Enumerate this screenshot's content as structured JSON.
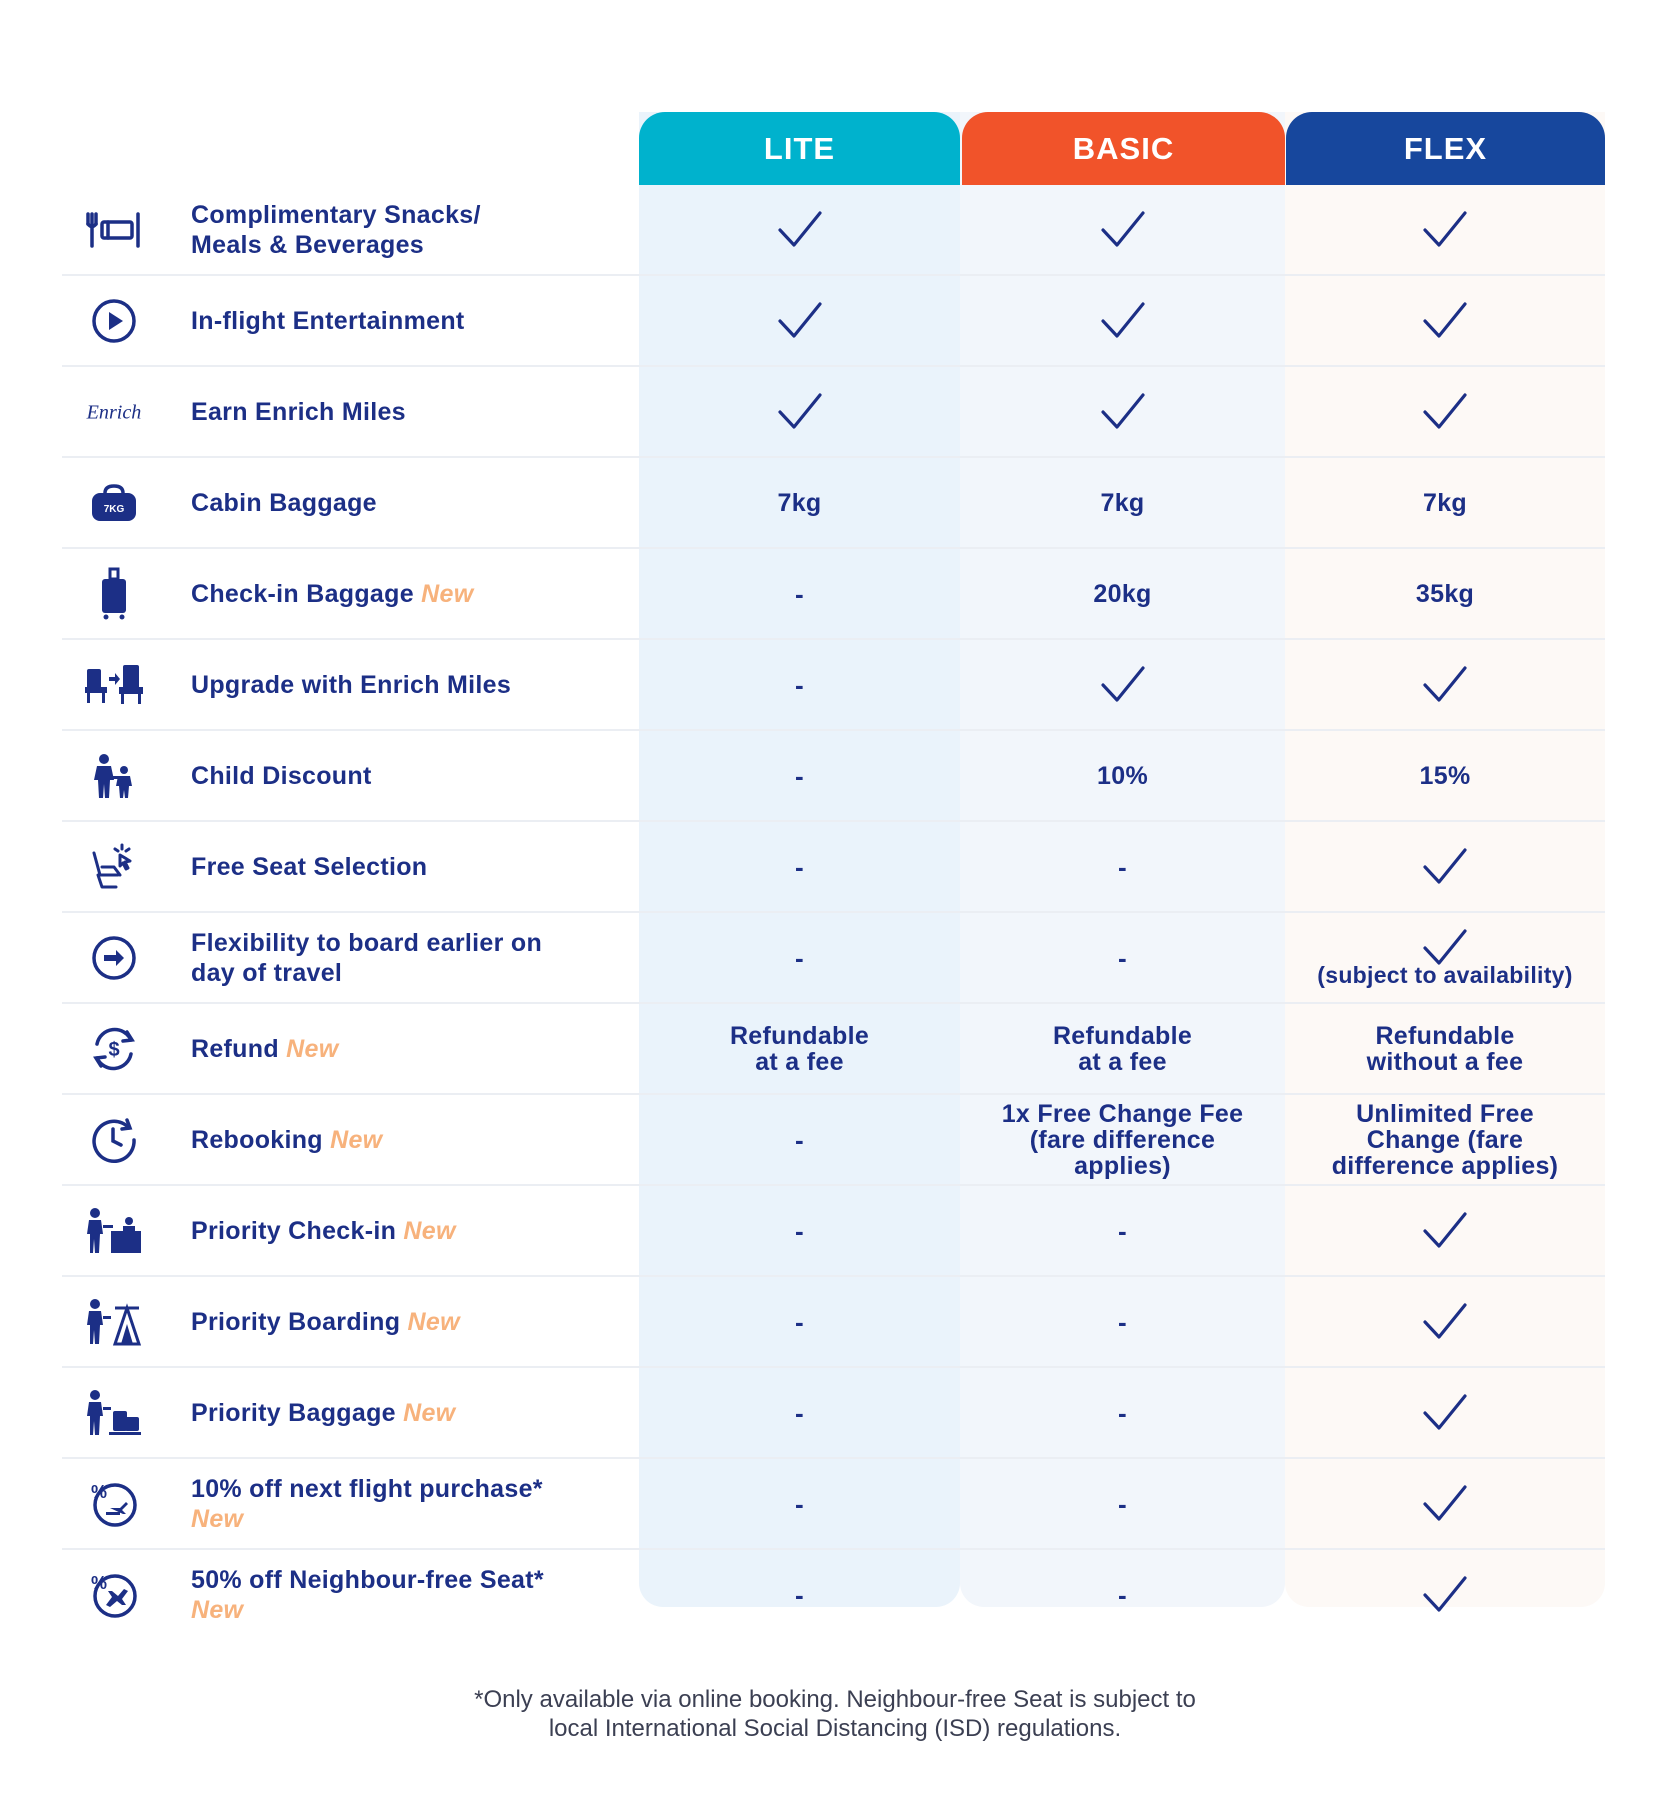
{
  "tiers": [
    {
      "name": "LITE",
      "color": "#00b2cd"
    },
    {
      "name": "BASIC",
      "color": "#f1532a"
    },
    {
      "name": "FLEX",
      "color": "#17479d"
    }
  ],
  "new_tag": "New",
  "rows": [
    {
      "label_lines": [
        "Complimentary Snacks/",
        "Meals & Beverages"
      ],
      "icon": "meal-icon",
      "lite": "check",
      "basic": "check",
      "flex": "check"
    },
    {
      "label_lines": [
        "In-flight Entertainment"
      ],
      "icon": "play-icon",
      "lite": "check",
      "basic": "check",
      "flex": "check"
    },
    {
      "label_lines": [
        "Earn Enrich Miles"
      ],
      "icon": "enrich-logo-icon",
      "icon_text": "Enrich",
      "lite": "check",
      "basic": "check",
      "flex": "check"
    },
    {
      "label_lines": [
        "Cabin Baggage"
      ],
      "icon": "cabin-bag-icon",
      "icon_text": "7KG",
      "lite": "7kg",
      "basic": "7kg",
      "flex": "7kg"
    },
    {
      "label_lines": [
        "Check-in Baggage"
      ],
      "new": true,
      "icon": "luggage-icon",
      "lite": "-",
      "basic": "20kg",
      "flex": "35kg"
    },
    {
      "label_lines": [
        "Upgrade with Enrich Miles"
      ],
      "icon": "seat-upgrade-icon",
      "lite": "-",
      "basic": "check",
      "flex": "check"
    },
    {
      "label_lines": [
        "Child Discount"
      ],
      "icon": "family-icon",
      "lite": "-",
      "basic": "10%",
      "flex": "15%"
    },
    {
      "label_lines": [
        "Free Seat Selection"
      ],
      "icon": "seat-select-icon",
      "lite": "-",
      "basic": "-",
      "flex": "check"
    },
    {
      "label_lines": [
        "Flexibility to board earlier on",
        "day of travel"
      ],
      "icon": "early-board-icon",
      "lite": "-",
      "basic": "-",
      "flex": "check",
      "flex_note": "(subject to availability)"
    },
    {
      "label_lines": [
        "Refund"
      ],
      "new": true,
      "icon": "refund-icon",
      "lite": "Refundable|at a fee",
      "basic": "Refundable|at a fee",
      "flex": "Refundable|without a fee"
    },
    {
      "label_lines": [
        "Rebooking"
      ],
      "new": true,
      "icon": "rebooking-clock-icon",
      "lite": "-",
      "basic": "1x Free Change Fee|(fare difference|applies)",
      "flex": "Unlimited Free|Change (fare|difference applies)"
    },
    {
      "label_lines": [
        "Priority Check-in"
      ],
      "new": true,
      "icon": "priority-checkin-icon",
      "lite": "-",
      "basic": "-",
      "flex": "check"
    },
    {
      "label_lines": [
        "Priority Boarding"
      ],
      "new": true,
      "icon": "priority-boarding-icon",
      "lite": "-",
      "basic": "-",
      "flex": "check"
    },
    {
      "label_lines": [
        "Priority Baggage"
      ],
      "new": true,
      "icon": "priority-baggage-icon",
      "lite": "-",
      "basic": "-",
      "flex": "check"
    },
    {
      "label_lines": [
        "10% off next flight purchase*"
      ],
      "new_on_next_line": true,
      "icon": "discount-flight-icon",
      "lite": "-",
      "basic": "-",
      "flex": "check"
    },
    {
      "label_lines": [
        "50% off Neighbour-free Seat*"
      ],
      "new_on_next_line": true,
      "icon": "discount-seat-icon",
      "lite": "-",
      "basic": "-",
      "flex": "check"
    }
  ],
  "footnote": [
    "*Only available via online booking. Neighbour-free Seat is subject to",
    "local International Social Distancing (ISD) regulations."
  ],
  "colors": {
    "text": "#1c2f86",
    "new_tag": "#f7b27c",
    "lite_bg": "#eaf3fb",
    "basic_bg": "#f2f6fb",
    "flex_bg": "#fdf9f6"
  }
}
